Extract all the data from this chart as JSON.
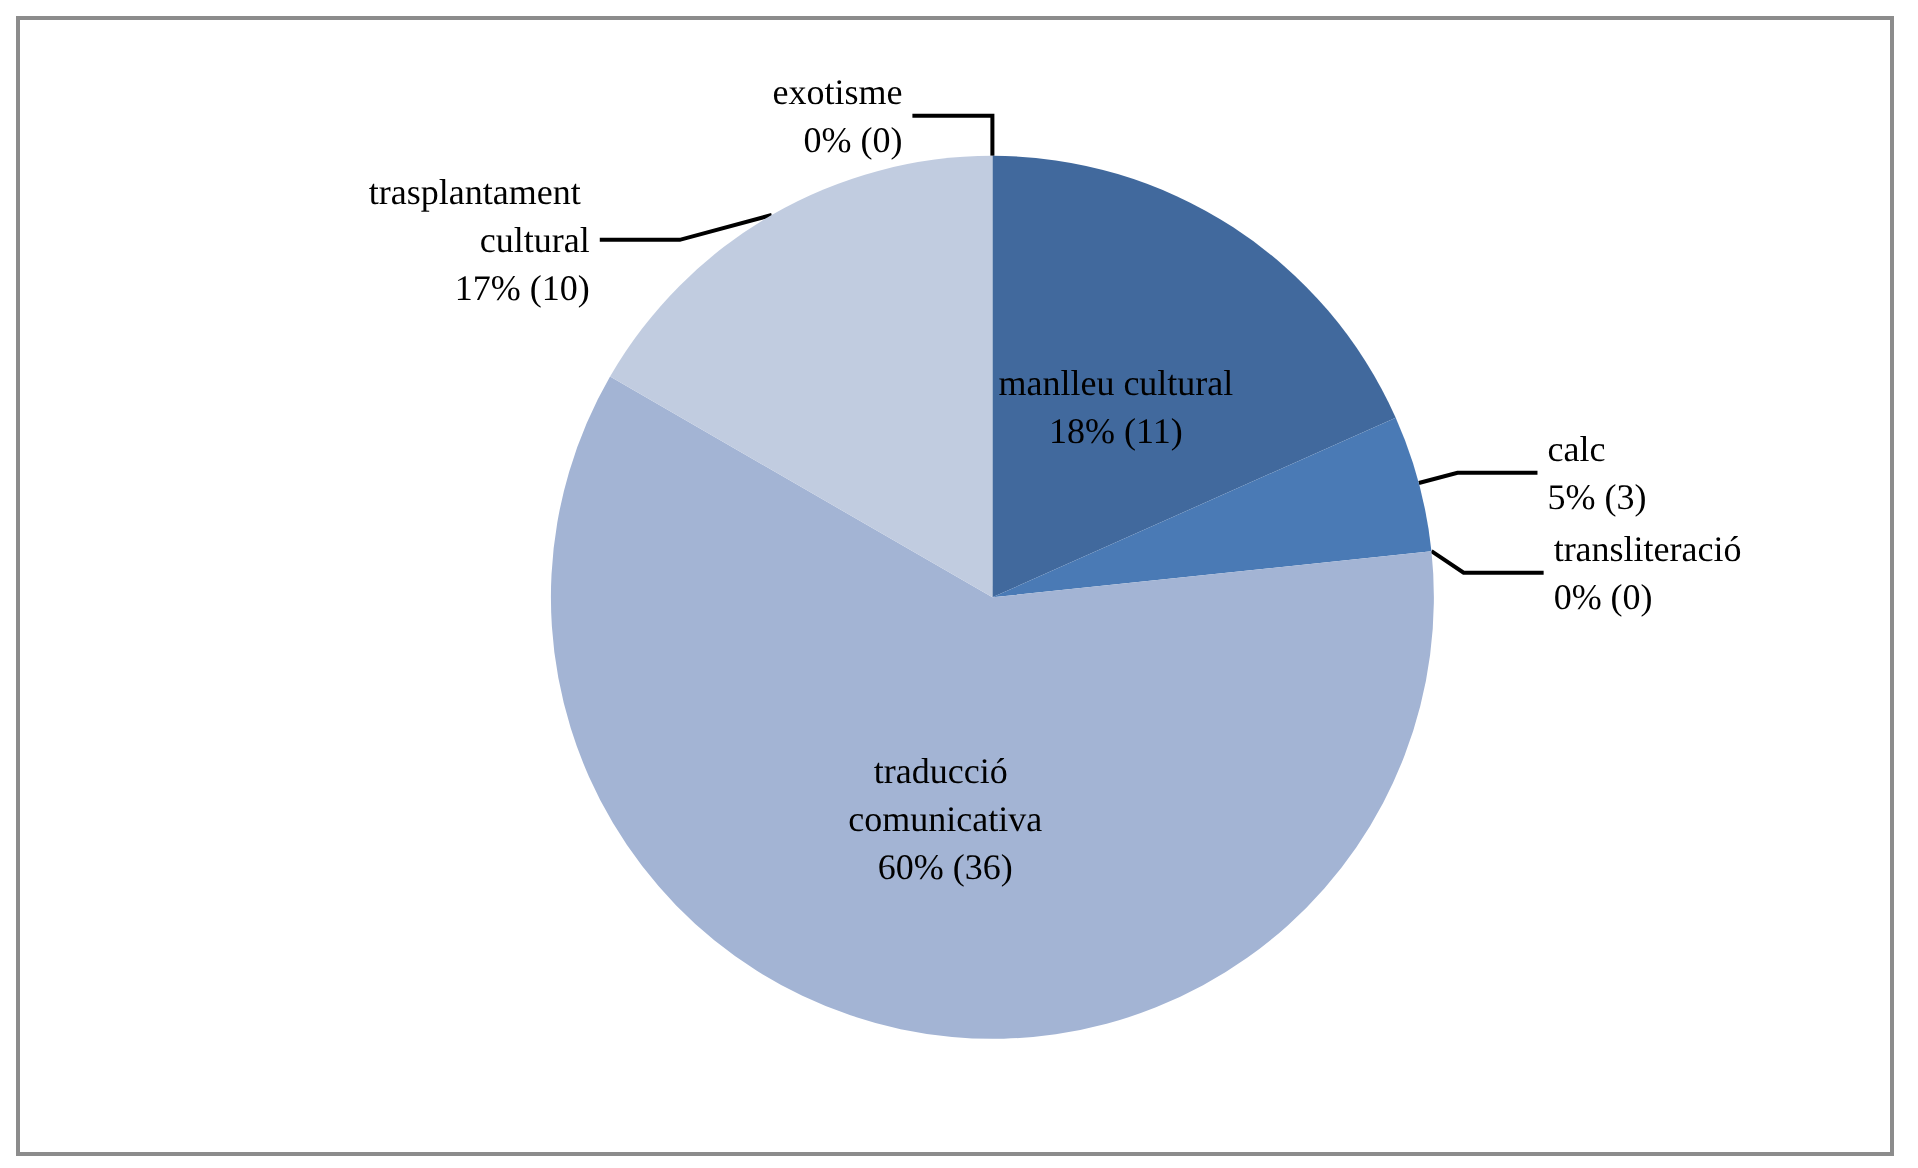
{
  "chart_data": {
    "type": "pie",
    "categories": [
      "exotisme",
      "manlleu cultural",
      "calc",
      "transliteració",
      "traducció comunicativa",
      "trasplantament cultural"
    ],
    "values": [
      0,
      11,
      3,
      0,
      36,
      10
    ],
    "value_labels": [
      "0% (0)",
      "18% (11)",
      "5% (3)",
      "0% (0)",
      "60% (36)",
      "17% (10)"
    ],
    "colors": [
      "#2f5a8f",
      "#41699d",
      "#4a7ab5",
      "#7f9ccc",
      "#a3b4d4",
      "#c1cce0"
    ]
  }
}
